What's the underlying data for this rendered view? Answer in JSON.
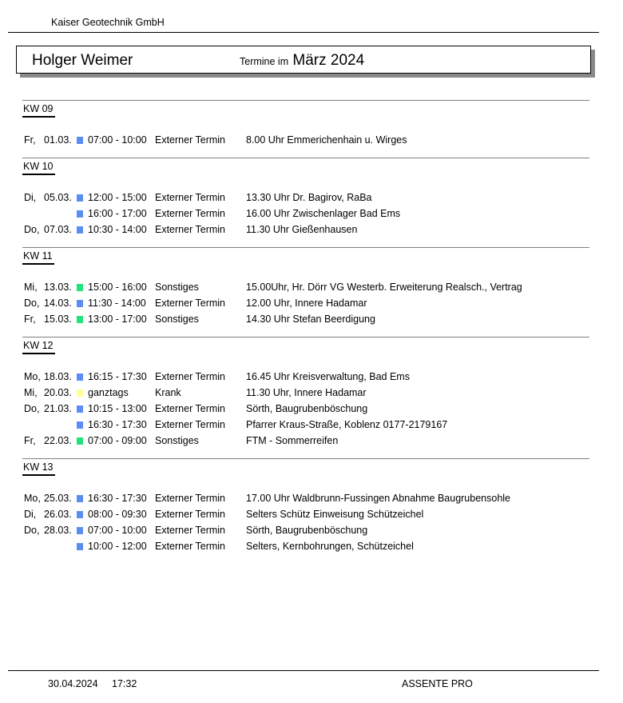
{
  "header": {
    "company": "Kaiser Geotechnik GmbH",
    "person": "Holger Weimer",
    "termine_label": "Termine im",
    "month": "März 2024"
  },
  "colors": {
    "Externer Termin": "#5b8ef0",
    "Sonstiges": "#22e27a",
    "Krank": "#ffff99"
  },
  "weeks": [
    {
      "label": "KW 09",
      "rows": [
        {
          "day": "Fr,",
          "date": "01.03.",
          "time": "07:00 - 10:00",
          "type": "Externer Termin",
          "desc": "8.00 Uhr Emmerichenhain u. Wirges"
        }
      ]
    },
    {
      "label": "KW 10",
      "rows": [
        {
          "day": "Di,",
          "date": "05.03.",
          "time": "12:00 - 15:00",
          "type": "Externer Termin",
          "desc": "13.30 Uhr Dr. Bagirov, RaBa"
        },
        {
          "day": "",
          "date": "",
          "time": "16:00 - 17:00",
          "type": "Externer Termin",
          "desc": "16.00 Uhr Zwischenlager Bad Ems"
        },
        {
          "day": "Do,",
          "date": "07.03.",
          "time": "10:30 - 14:00",
          "type": "Externer Termin",
          "desc": "11.30 Uhr Gießenhausen"
        }
      ]
    },
    {
      "label": "KW 11",
      "rows": [
        {
          "day": "Mi,",
          "date": "13.03.",
          "time": "15:00 - 16:00",
          "type": "Sonstiges",
          "desc": "15.00Uhr, Hr. Dörr VG Westerb. Erweiterung Realsch., Vertrag"
        },
        {
          "day": "Do,",
          "date": "14.03.",
          "time": "11:30 - 14:00",
          "type": "Externer Termin",
          "desc": "12.00 Uhr, Innere Hadamar"
        },
        {
          "day": "Fr,",
          "date": "15.03.",
          "time": "13:00 - 17:00",
          "type": "Sonstiges",
          "desc": "14.30 Uhr Stefan Beerdigung"
        }
      ]
    },
    {
      "label": "KW 12",
      "rows": [
        {
          "day": "Mo,",
          "date": "18.03.",
          "time": "16:15 - 17:30",
          "type": "Externer Termin",
          "desc": "16.45 Uhr Kreisverwaltung, Bad Ems"
        },
        {
          "day": "Mi,",
          "date": "20.03.",
          "time": "ganztags",
          "type": "Krank",
          "desc": "11.30 Uhr, Innere Hadamar"
        },
        {
          "day": "Do,",
          "date": "21.03.",
          "time": "10:15 - 13:00",
          "type": "Externer Termin",
          "desc": "Sörth, Baugrubenböschung"
        },
        {
          "day": "",
          "date": "",
          "time": "16:30 - 17:30",
          "type": "Externer Termin",
          "desc": "Pfarrer Kraus-Straße, Koblenz 0177-2179167"
        },
        {
          "day": "Fr,",
          "date": "22.03.",
          "time": "07:00 - 09:00",
          "type": "Sonstiges",
          "desc": "FTM - Sommerreifen"
        }
      ]
    },
    {
      "label": "KW 13",
      "rows": [
        {
          "day": "Mo,",
          "date": "25.03.",
          "time": "16:30 - 17:30",
          "type": "Externer Termin",
          "desc": "17.00 Uhr Waldbrunn-Fussingen Abnahme Baugrubensohle"
        },
        {
          "day": "Di,",
          "date": "26.03.",
          "time": "08:00 - 09:30",
          "type": "Externer Termin",
          "desc": "Selters Schütz Einweisung Schützeichel"
        },
        {
          "day": "Do,",
          "date": "28.03.",
          "time": "07:00 - 10:00",
          "type": "Externer Termin",
          "desc": "Sörth, Baugrubenböschung"
        },
        {
          "day": "",
          "date": "",
          "time": "10:00 - 12:00",
          "type": "Externer Termin",
          "desc": "Selters, Kernbohrungen, Schützeichel"
        }
      ]
    }
  ],
  "footer": {
    "date": "30.04.2024",
    "time": "17:32",
    "product": "ASSENTE PRO"
  }
}
